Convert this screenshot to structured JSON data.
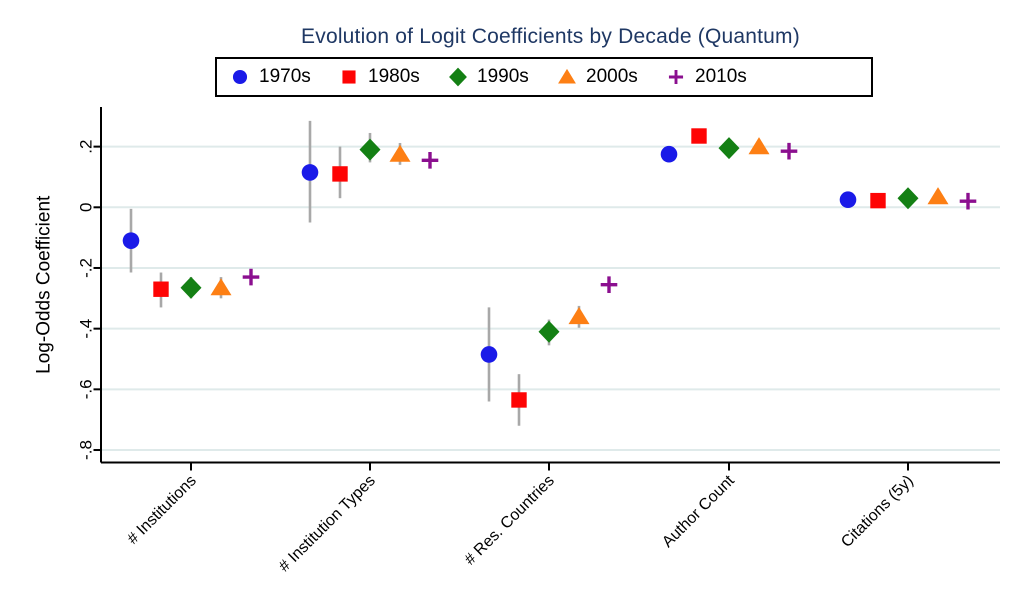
{
  "chart_data": {
    "type": "scatter",
    "subtype": "coefficient-plot-with-ci",
    "title": "Evolution of Logit Coefficients by Decade (Quantum)",
    "xlabel": "",
    "ylabel": "Log-Odds Coefficient",
    "ylim": [
      -0.84,
      0.33
    ],
    "grid": true,
    "legend_position": "top",
    "categories": [
      "# Institutions",
      "# Institution Types",
      "# Res. Countries",
      "Author Count",
      "Citations (5y)"
    ],
    "y_ticks": [
      {
        "label": ".2",
        "value": 0.2
      },
      {
        "label": "0",
        "value": 0
      },
      {
        "label": "-.2",
        "value": -0.2
      },
      {
        "label": "-.4",
        "value": -0.4
      },
      {
        "label": "-.6",
        "value": -0.6
      },
      {
        "label": "-.8",
        "value": -0.8
      }
    ],
    "series": [
      {
        "name": "1970s",
        "marker": "circle",
        "color": "#1a1ae8",
        "values": [
          -0.11,
          0.115,
          -0.485,
          0.175,
          0.025
        ],
        "ci_low": [
          -0.215,
          -0.05,
          -0.64,
          0.155,
          0.005
        ],
        "ci_high": [
          -0.005,
          0.285,
          -0.33,
          0.195,
          0.045
        ]
      },
      {
        "name": "1980s",
        "marker": "square",
        "color": "#fe0404",
        "values": [
          -0.27,
          0.11,
          -0.635,
          0.235,
          0.022
        ],
        "ci_low": [
          -0.33,
          0.03,
          -0.72,
          0.215,
          0.002
        ],
        "ci_high": [
          -0.215,
          0.2,
          -0.55,
          0.255,
          0.042
        ]
      },
      {
        "name": "1990s",
        "marker": "diamond",
        "color": "#148014",
        "values": [
          -0.265,
          0.19,
          -0.41,
          0.195,
          0.03
        ],
        "ci_low": [
          -0.3,
          0.148,
          -0.455,
          0.175,
          0.01
        ],
        "ci_high": [
          -0.23,
          0.245,
          -0.37,
          0.215,
          0.05
        ]
      },
      {
        "name": "2000s",
        "marker": "triangle",
        "color": "#fd7f14",
        "values": [
          -0.265,
          0.175,
          -0.36,
          0.2,
          0.035
        ],
        "ci_low": [
          -0.3,
          0.14,
          -0.397,
          0.182,
          0.017
        ],
        "ci_high": [
          -0.23,
          0.212,
          -0.325,
          0.218,
          0.053
        ]
      },
      {
        "name": "2010s",
        "marker": "plus",
        "color": "#8b0f8f",
        "values": [
          -0.23,
          0.155,
          -0.255,
          0.185,
          0.02
        ],
        "ci_low": [
          -0.255,
          0.132,
          -0.28,
          0.168,
          0.004
        ],
        "ci_high": [
          -0.205,
          0.178,
          -0.23,
          0.202,
          0.036
        ]
      }
    ],
    "style": {
      "title_color": "#1f3864",
      "axis_color": "#000000",
      "grid_color": "#dfeaea",
      "ci_color": "#a8a8a8",
      "background": "#ffffff"
    }
  }
}
